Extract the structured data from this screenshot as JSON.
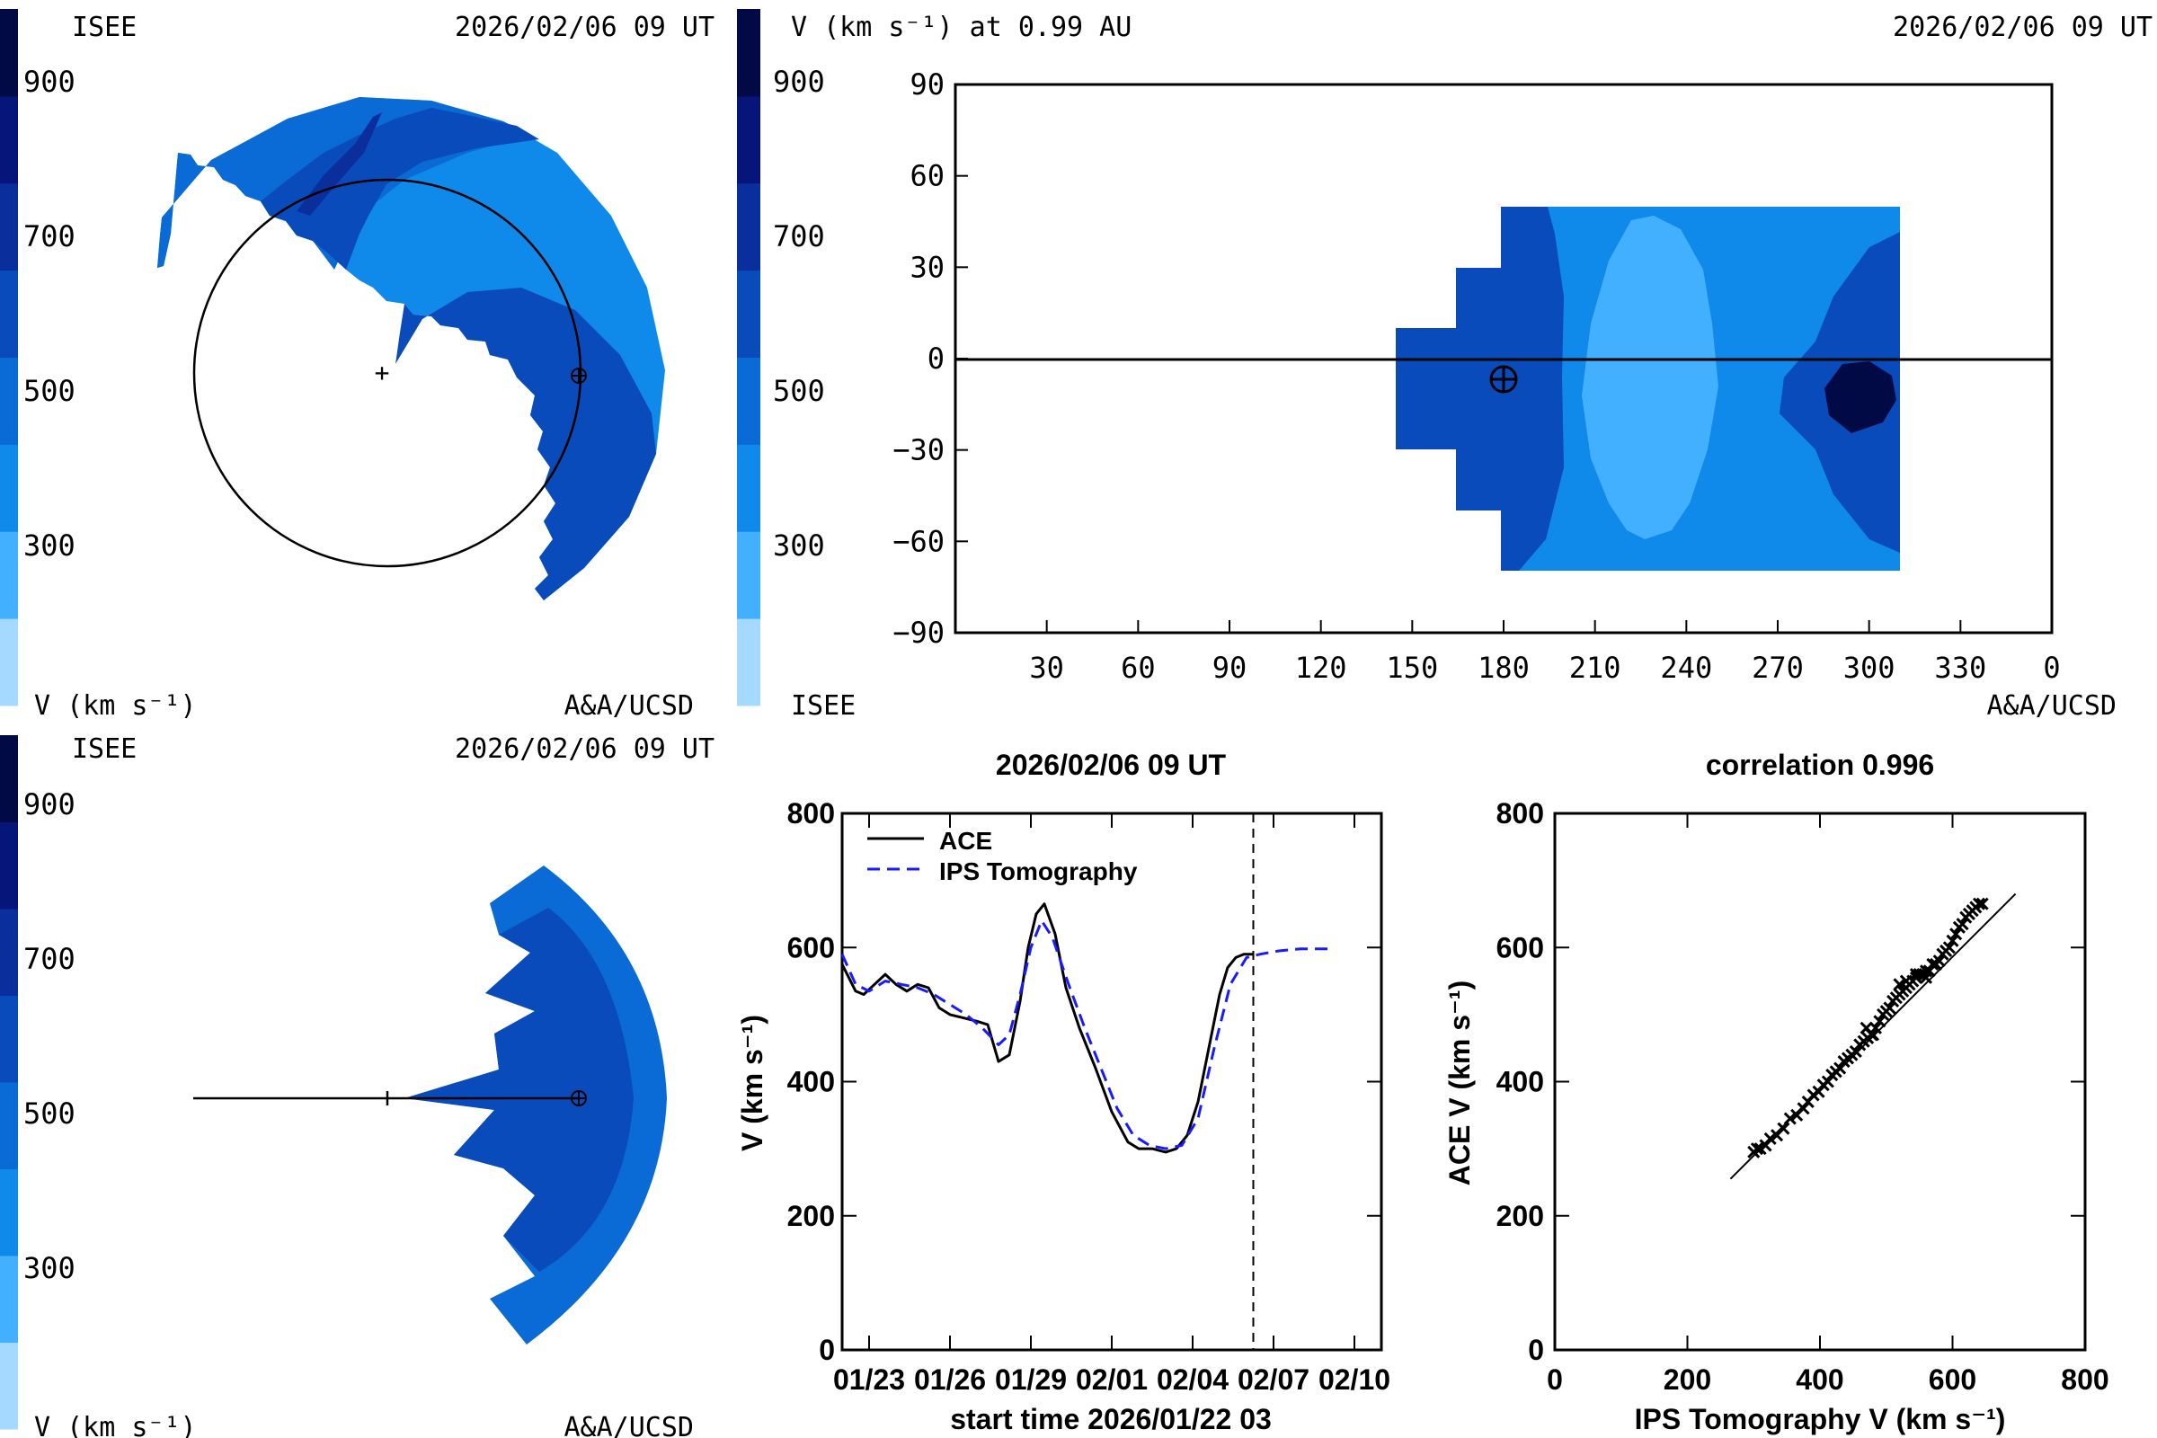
{
  "palette": [
    "#a6d9ff",
    "#42b0ff",
    "#0f8aeb",
    "#0a6ad6",
    "#0a4bbb",
    "#0a2f9c",
    "#06157a",
    "#020a45"
  ],
  "line_color": "#000000",
  "dash_color": "#1a1aff",
  "panel_tl": {
    "label_left": "ISEE",
    "date": "2026/02/06 09 UT",
    "colorbar_ticks": [
      "900",
      "700",
      "500",
      "300"
    ],
    "unit_label": "V (km s⁻¹)",
    "credit": "A&A/UCSD",
    "markers": [
      "sun-plus",
      "earth-symbol"
    ]
  },
  "panel_tr": {
    "title": "V (km s⁻¹) at 0.99 AU",
    "date": "2026/02/06 09 UT",
    "colorbar_ticks": [
      "900",
      "700",
      "500",
      "300"
    ],
    "label_left": "ISEE",
    "credit": "A&A/UCSD"
  },
  "panel_bl": {
    "label_left": "ISEE",
    "date": "2026/02/06 09 UT",
    "colorbar_ticks": [
      "900",
      "700",
      "500",
      "300"
    ],
    "unit_label": "V (km s⁻¹)",
    "credit": "A&A/UCSD"
  },
  "chart_data": [
    {
      "type": "heatmap",
      "xticks": [
        "30",
        "60",
        "90",
        "120",
        "150",
        "180",
        "210",
        "240",
        "270",
        "300",
        "330",
        "0"
      ],
      "yticks": [
        "90",
        "60",
        "30",
        "0",
        "−30",
        "−60",
        "−90"
      ],
      "xlim": [
        0,
        360
      ],
      "ylim": [
        -90,
        90
      ],
      "earth_marker": {
        "x": 180,
        "y": -6
      },
      "zero_line": 0
    },
    {
      "type": "line",
      "title": "2026/02/06 09 UT",
      "xlabel": "start time 2026/01/22 03",
      "ylabel": "V (km s⁻¹)",
      "xtick_labels": [
        "01/23",
        "01/26",
        "01/29",
        "02/01",
        "02/04",
        "02/07",
        "02/10"
      ],
      "xtick_days": [
        1,
        4,
        7,
        10,
        13,
        16,
        19
      ],
      "xlim": [
        0,
        20
      ],
      "ylim": [
        0,
        800
      ],
      "yticks": [
        0,
        200,
        400,
        600,
        800
      ],
      "now_marker_day": 15.25,
      "series": [
        {
          "name": "ACE",
          "style": "solid",
          "x": [
            0,
            0.5,
            0.8,
            1.2,
            1.6,
            2.0,
            2.4,
            2.8,
            3.2,
            3.6,
            4.0,
            4.5,
            5.0,
            5.4,
            5.8,
            6.2,
            6.6,
            6.9,
            7.2,
            7.5,
            7.9,
            8.3,
            8.8,
            9.4,
            10.0,
            10.6,
            11.0,
            11.5,
            12.0,
            12.4,
            12.8,
            13.2,
            13.6,
            14.0,
            14.3,
            14.6,
            14.9,
            15.25
          ],
          "y": [
            575,
            535,
            530,
            545,
            560,
            545,
            535,
            545,
            540,
            510,
            500,
            495,
            490,
            485,
            430,
            440,
            520,
            600,
            650,
            665,
            620,
            540,
            480,
            420,
            355,
            310,
            300,
            300,
            295,
            300,
            320,
            370,
            450,
            530,
            570,
            585,
            590,
            590
          ]
        },
        {
          "name": "IPS Tomography",
          "style": "dashed",
          "x": [
            0,
            0.5,
            1.0,
            1.6,
            2.2,
            2.8,
            3.4,
            4.0,
            4.6,
            5.2,
            5.8,
            6.2,
            6.6,
            7.0,
            7.4,
            7.8,
            8.4,
            9.0,
            9.6,
            10.2,
            10.8,
            11.4,
            12.0,
            12.6,
            13.2,
            13.8,
            14.4,
            15.0,
            15.5,
            16.2,
            17.0,
            17.5,
            18.0
          ],
          "y": [
            590,
            545,
            535,
            550,
            545,
            540,
            530,
            515,
            500,
            480,
            455,
            470,
            530,
            600,
            640,
            615,
            545,
            480,
            420,
            360,
            320,
            305,
            300,
            305,
            345,
            450,
            545,
            585,
            590,
            595,
            598,
            598,
            598
          ]
        }
      ]
    },
    {
      "type": "scatter",
      "title": "correlation 0.996",
      "xlabel": "IPS Tomography V (km s⁻¹)",
      "ylabel": "ACE V (km s⁻¹)",
      "xlim": [
        0,
        800
      ],
      "ylim": [
        0,
        800
      ],
      "xticks": [
        0,
        200,
        400,
        600,
        800
      ],
      "yticks": [
        0,
        200,
        400,
        600,
        800
      ],
      "fit_line": {
        "x": [
          265,
          695
        ],
        "y": [
          255,
          680
        ]
      },
      "points": {
        "x": [
          300,
          305,
          310,
          318,
          325,
          335,
          345,
          355,
          365,
          375,
          382,
          390,
          398,
          405,
          412,
          418,
          424,
          430,
          436,
          442,
          448,
          454,
          460,
          466,
          472,
          478,
          484,
          490,
          495,
          500,
          505,
          510,
          515,
          520,
          525,
          530,
          535,
          540,
          545,
          550,
          555,
          560,
          565,
          570,
          575,
          580,
          585,
          590,
          595,
          600,
          605,
          610,
          615,
          620,
          625,
          630,
          635,
          640,
          645,
          520,
          530,
          545,
          560,
          470,
          480
        ],
        "y": [
          295,
          300,
          300,
          305,
          315,
          320,
          330,
          345,
          350,
          360,
          370,
          380,
          385,
          395,
          400,
          410,
          415,
          420,
          430,
          435,
          440,
          445,
          455,
          460,
          465,
          470,
          480,
          490,
          500,
          505,
          510,
          520,
          525,
          530,
          535,
          540,
          545,
          550,
          555,
          560,
          560,
          565,
          565,
          575,
          575,
          580,
          590,
          595,
          600,
          610,
          620,
          630,
          635,
          645,
          650,
          655,
          660,
          665,
          665,
          545,
          550,
          560,
          555,
          480,
          470
        ]
      }
    }
  ]
}
